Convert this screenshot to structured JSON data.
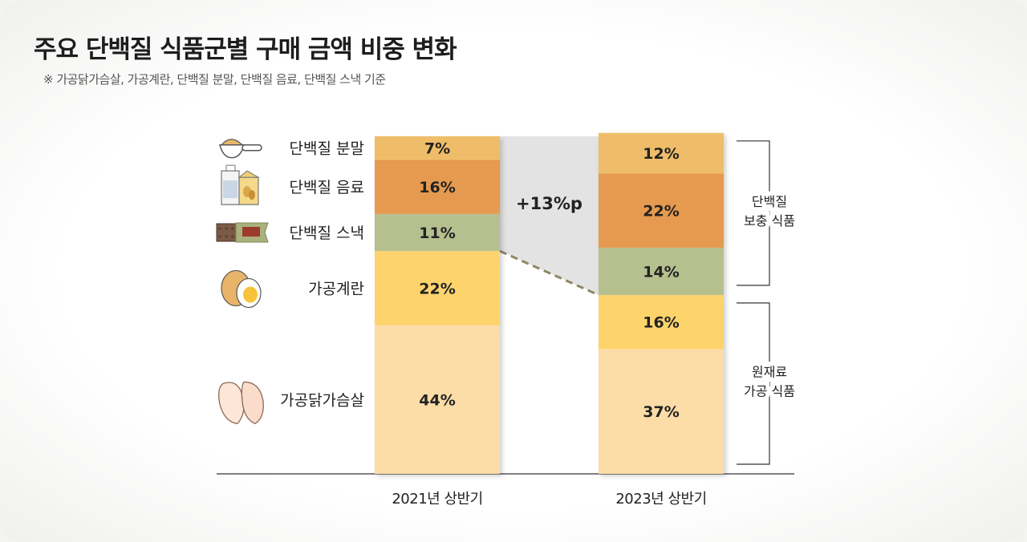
{
  "title": "주요 단백질 식품군별 구매 금액 비중 변화",
  "note": "※ 가공닭가슴살, 가공계란, 단백질 분말, 단백질 음료, 단백질 스낵 기준",
  "chart_data": {
    "type": "bar",
    "stacked": true,
    "unit": "%",
    "categories": [
      "2021년 상반기",
      "2023년 상반기"
    ],
    "series": [
      {
        "name": "가공닭가슴살",
        "values": [
          44,
          37
        ],
        "labels": [
          "44%",
          "37%"
        ],
        "color": "#fcdca7",
        "icon": "chicken-breast-icon"
      },
      {
        "name": "가공계란",
        "values": [
          22,
          16
        ],
        "labels": [
          "22%",
          "16%"
        ],
        "color": "#fdd46c",
        "icon": "egg-icon"
      },
      {
        "name": "단백질 스낵",
        "values": [
          11,
          14
        ],
        "labels": [
          "11%",
          "14%"
        ],
        "color": "#b6c08f",
        "icon": "protein-bar-icon"
      },
      {
        "name": "단백질 음료",
        "values": [
          16,
          22
        ],
        "labels": [
          "16%",
          "22%"
        ],
        "color": "#e59a4f",
        "icon": "protein-drink-icon"
      },
      {
        "name": "단백질 분말",
        "values": [
          7,
          12
        ],
        "labels": [
          "7%",
          "12%"
        ],
        "color": "#efbd69",
        "icon": "protein-powder-scoop-icon"
      }
    ],
    "groups": [
      {
        "label": "단백질\n보충 식품",
        "series": [
          "단백질 분말",
          "단백질 음료",
          "단백질 스낵"
        ]
      },
      {
        "label": "원재료\n가공 식품",
        "series": [
          "가공계란",
          "가공닭가슴살"
        ]
      }
    ],
    "annotation": {
      "text": "+13%p"
    },
    "ylim": [
      0,
      100
    ]
  }
}
